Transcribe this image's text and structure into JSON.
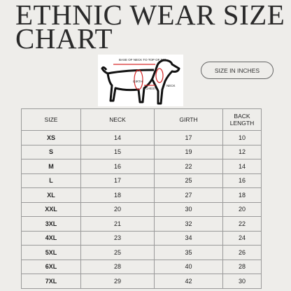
{
  "header": {
    "title": "ETHNIC WEAR SIZE CHART",
    "unit_button": "SIZE IN INCHES"
  },
  "diagram": {
    "labels": [
      "BASE OF NECK TO TOP OF TAIL",
      "GIRTH",
      "CHEST",
      "NECK"
    ]
  },
  "table": {
    "columns": [
      "SIZE",
      "NECK",
      "GIRTH",
      "BACK LENGTH"
    ],
    "rows": [
      [
        "XS",
        14,
        17,
        10
      ],
      [
        "S",
        15,
        19,
        12
      ],
      [
        "M",
        16,
        22,
        14
      ],
      [
        "L",
        17,
        25,
        16
      ],
      [
        "XL",
        18,
        27,
        18
      ],
      [
        "XXL",
        20,
        30,
        20
      ],
      [
        "3XL",
        21,
        32,
        22
      ],
      [
        "4XL",
        23,
        34,
        24
      ],
      [
        "5XL",
        25,
        35,
        26
      ],
      [
        "6XL",
        28,
        40,
        28
      ],
      [
        "7XL",
        29,
        42,
        30
      ]
    ]
  }
}
